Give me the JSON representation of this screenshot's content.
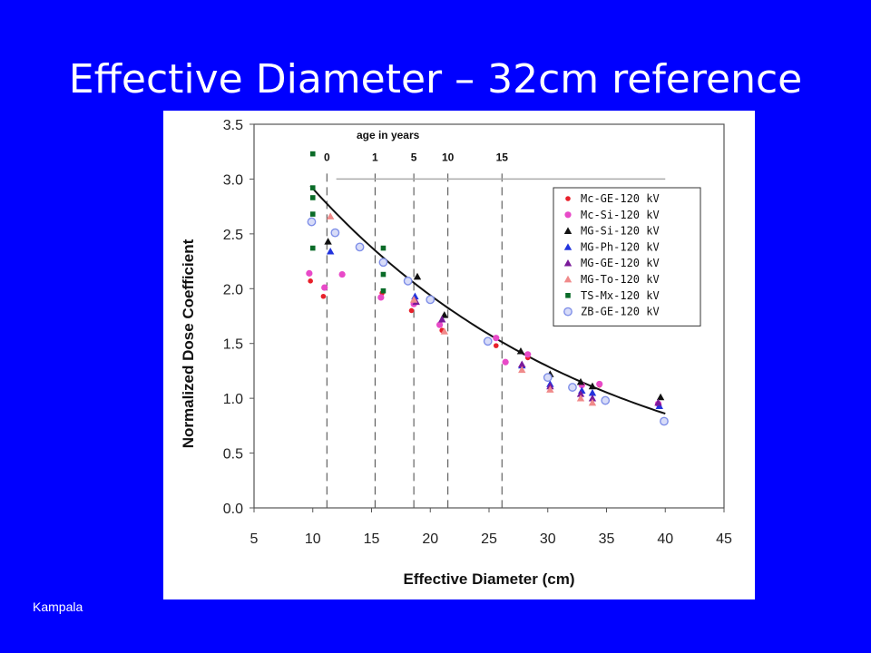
{
  "slide": {
    "title": "Effective Diameter – 32cm reference",
    "footer": "Kampala"
  },
  "chart_data": {
    "type": "scatter",
    "title": "",
    "xlabel": "Effective Diameter (cm)",
    "ylabel": "Normalized Dose Coefficient",
    "xlim": [
      5,
      45
    ],
    "ylim": [
      0,
      3.5
    ],
    "xticks": [
      5,
      10,
      15,
      20,
      25,
      30,
      35,
      40,
      45
    ],
    "yticks": [
      "0.0",
      "0.5",
      "1.0",
      "1.5",
      "2.0",
      "2.5",
      "3.0",
      "3.5"
    ],
    "grid": false,
    "legend_position": "right",
    "age_annotation": {
      "title": "age in years",
      "markers": [
        {
          "label": "0",
          "x": 11.2
        },
        {
          "label": "1",
          "x": 15.3
        },
        {
          "label": "5",
          "x": 18.6
        },
        {
          "label": "10",
          "x": 21.5
        },
        {
          "label": "15",
          "x": 26.1
        }
      ]
    },
    "fit_curve": {
      "x": [
        9.8,
        40
      ],
      "a": 4.378,
      "b": -0.0407
    },
    "series": [
      {
        "name": "Mc-GE-120 kV",
        "marker": "circle-small",
        "color": "#e8202a",
        "x": [
          9.8,
          10.9,
          15.9,
          18.4,
          21.0,
          25.6,
          28.3,
          34.4
        ],
        "y": [
          2.07,
          1.93,
          1.96,
          1.8,
          1.62,
          1.48,
          1.37,
          1.12
        ]
      },
      {
        "name": "Mc-Si-120 kV",
        "marker": "circle",
        "color": "#e84ac8",
        "x": [
          9.7,
          11.0,
          12.5,
          15.8,
          18.6,
          20.8,
          25.6,
          26.4,
          28.3,
          32.9,
          34.4,
          39.4
        ],
        "y": [
          2.14,
          2.01,
          2.13,
          1.92,
          1.86,
          1.67,
          1.55,
          1.33,
          1.4,
          1.12,
          1.13,
          0.95
        ]
      },
      {
        "name": "MG-Si-120 kV",
        "marker": "triangle",
        "color": "#111111",
        "x": [
          11.3,
          18.9,
          21.2,
          27.7,
          30.2,
          32.8,
          33.8,
          39.6
        ],
        "y": [
          2.43,
          2.11,
          1.76,
          1.43,
          1.22,
          1.15,
          1.11,
          1.01
        ]
      },
      {
        "name": "MG-Ph-120 kV",
        "marker": "triangle",
        "color": "#2233dd",
        "x": [
          11.5,
          18.7,
          27.8,
          30.2,
          32.9,
          33.8,
          39.5
        ],
        "y": [
          2.34,
          1.93,
          1.3,
          1.13,
          1.07,
          1.05,
          0.93
        ]
      },
      {
        "name": "MG-GE-120 kV",
        "marker": "triangle",
        "color": "#7a1a9a",
        "x": [
          18.8,
          21.0,
          27.8,
          30.2,
          32.8,
          33.8,
          39.4
        ],
        "y": [
          1.88,
          1.72,
          1.31,
          1.11,
          1.04,
          1.0,
          0.96
        ]
      },
      {
        "name": "MG-To-120 kV",
        "marker": "triangle",
        "color": "#f08a8a",
        "x": [
          11.5,
          18.6,
          21.2,
          27.8,
          30.2,
          32.8,
          33.8
        ],
        "y": [
          2.66,
          1.9,
          1.61,
          1.26,
          1.08,
          1.0,
          0.96
        ]
      },
      {
        "name": "TS-Mx-120 kV",
        "marker": "square",
        "color": "#0a6b28",
        "x": [
          10.0,
          10.0,
          10.0,
          10.0,
          10.0,
          16.0,
          16.0,
          16.0,
          16.0
        ],
        "y": [
          3.23,
          2.92,
          2.83,
          2.68,
          2.37,
          2.37,
          2.24,
          2.13,
          1.98
        ]
      },
      {
        "name": "ZB-GE-120 kV",
        "marker": "circle-open",
        "color": "#7f8fe8",
        "x": [
          9.9,
          11.9,
          14.0,
          16.0,
          18.1,
          20.0,
          24.9,
          30.0,
          32.1,
          34.9,
          39.9
        ],
        "y": [
          2.61,
          2.51,
          2.38,
          2.24,
          2.07,
          1.9,
          1.52,
          1.19,
          1.1,
          0.98,
          0.79
        ]
      }
    ]
  }
}
